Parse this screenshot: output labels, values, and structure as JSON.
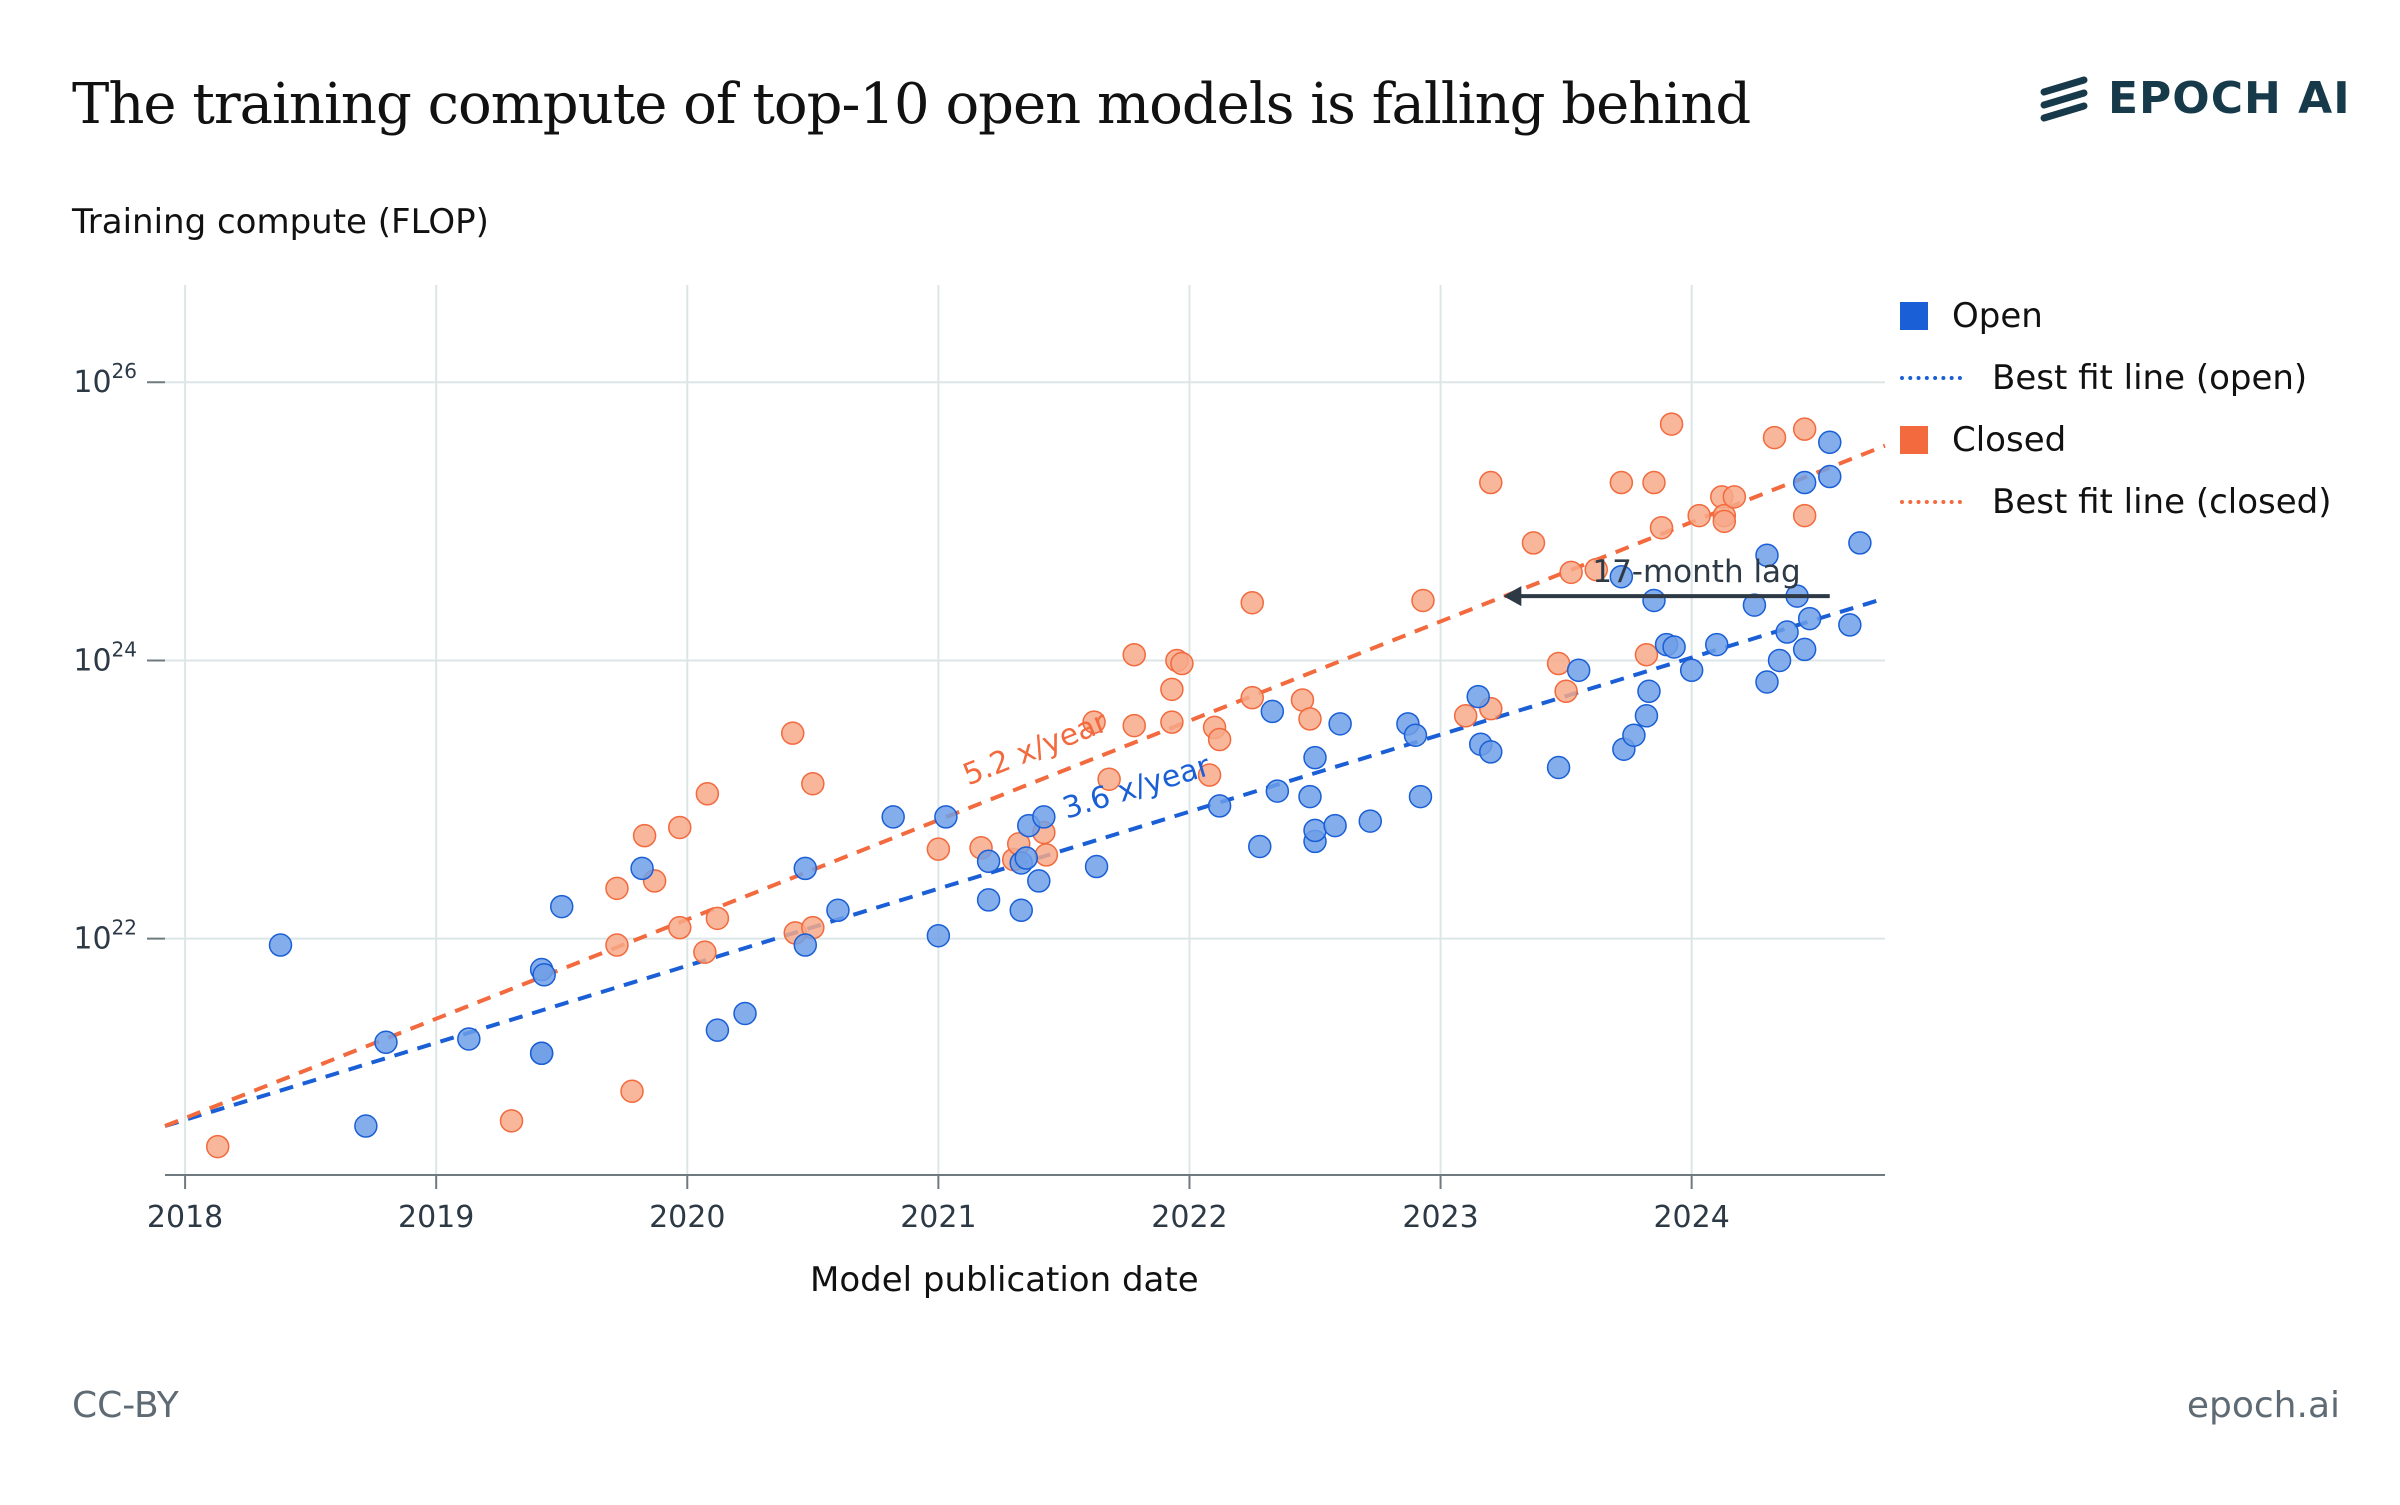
{
  "header": {
    "title": "The training compute of top-10 open models is falling behind",
    "logo_text": "EPOCH AI"
  },
  "footer": {
    "license": "CC-BY",
    "site": "epoch.ai"
  },
  "colors": {
    "open": "#1a5fd6",
    "open_fill": "#6f9fe8",
    "closed": "#f26a3d",
    "closed_fill": "#f7a98a",
    "grid": "#dde6e6",
    "axis": "#6f7a80",
    "annotation": "#2d3a45"
  },
  "legend": {
    "open": "Open",
    "open_fit": "Best fit line (open)",
    "closed": "Closed",
    "closed_fit": "Best fit line (closed)"
  },
  "chart_data": {
    "type": "scatter",
    "title": "The training compute of top-10 open models is falling behind",
    "xlabel": "Model publication date",
    "ylabel": "Training compute (FLOP)",
    "y_scale": "log",
    "xlim": [
      2017.92,
      2024.77
    ],
    "ylim": [
      2e+20,
      5e+26
    ],
    "x_ticks": [
      "2018",
      "2019",
      "2020",
      "2021",
      "2022",
      "2023",
      "2024"
    ],
    "y_ticks": [
      {
        "base": "10",
        "exp": "22",
        "value": 1e+22
      },
      {
        "base": "10",
        "exp": "24",
        "value": 1e+24
      },
      {
        "base": "10",
        "exp": "26",
        "value": 1e+26
      }
    ],
    "grid": true,
    "legend_position": "right",
    "series": [
      {
        "name": "Open",
        "kind": "points",
        "points": [
          [
            2018.38,
            9e+21
          ],
          [
            2018.72,
            4.5e+20
          ],
          [
            2018.8,
            1.8e+21
          ],
          [
            2019.13,
            1.9e+21
          ],
          [
            2019.42,
            1.5e+21
          ],
          [
            2019.42,
            1.5e+21
          ],
          [
            2019.42,
            6e+21
          ],
          [
            2019.43,
            5.5e+21
          ],
          [
            2019.5,
            1.7e+22
          ],
          [
            2019.82,
            3.2e+22
          ],
          [
            2020.12,
            2.2e+21
          ],
          [
            2020.23,
            2.9e+21
          ],
          [
            2020.47,
            3.2e+22
          ],
          [
            2020.47,
            9e+21
          ],
          [
            2020.6,
            1.6e+22
          ],
          [
            2020.82,
            7.5e+22
          ],
          [
            2021.0,
            1.05e+22
          ],
          [
            2021.03,
            7.5e+22
          ],
          [
            2021.2,
            1.9e+22
          ],
          [
            2021.2,
            3.6e+22
          ],
          [
            2021.33,
            1.6e+22
          ],
          [
            2021.33,
            3.5e+22
          ],
          [
            2021.35,
            3.8e+22
          ],
          [
            2021.36,
            6.5e+22
          ],
          [
            2021.4,
            2.6e+22
          ],
          [
            2021.42,
            7.5e+22
          ],
          [
            2021.63,
            3.3e+22
          ],
          [
            2022.12,
            9e+22
          ],
          [
            2022.28,
            4.6e+22
          ],
          [
            2022.33,
            4.3e+23
          ],
          [
            2022.35,
            1.15e+23
          ],
          [
            2022.48,
            1.05e+23
          ],
          [
            2022.5,
            2e+23
          ],
          [
            2022.5,
            5e+22
          ],
          [
            2022.5,
            6e+22
          ],
          [
            2022.58,
            6.5e+22
          ],
          [
            2022.6,
            3.5e+23
          ],
          [
            2022.72,
            7e+22
          ],
          [
            2022.87,
            3.5e+23
          ],
          [
            2022.9,
            2.9e+23
          ],
          [
            2022.92,
            1.05e+23
          ],
          [
            2023.15,
            5.5e+23
          ],
          [
            2023.16,
            2.5e+23
          ],
          [
            2023.2,
            2.2e+23
          ],
          [
            2023.47,
            1.7e+23
          ],
          [
            2023.55,
            8.5e+23
          ],
          [
            2023.72,
            4e+24
          ],
          [
            2023.73,
            2.3e+23
          ],
          [
            2023.77,
            2.9e+23
          ],
          [
            2023.82,
            4e+23
          ],
          [
            2023.83,
            6e+23
          ],
          [
            2023.85,
            2.7e+24
          ],
          [
            2023.9,
            1.3e+24
          ],
          [
            2023.93,
            1.25e+24
          ],
          [
            2024.0,
            8.5e+23
          ],
          [
            2024.1,
            1.3e+24
          ],
          [
            2024.25,
            2.5e+24
          ],
          [
            2024.3,
            5.7e+24
          ],
          [
            2024.3,
            7e+23
          ],
          [
            2024.35,
            1e+24
          ],
          [
            2024.38,
            1.6e+24
          ],
          [
            2024.42,
            2.9e+24
          ],
          [
            2024.45,
            1.2e+24
          ],
          [
            2024.45,
            1.9e+25
          ],
          [
            2024.47,
            2e+24
          ],
          [
            2024.55,
            3.7e+25
          ],
          [
            2024.55,
            2.1e+25
          ],
          [
            2024.63,
            1.8e+24
          ],
          [
            2024.67,
            7e+24
          ]
        ]
      },
      {
        "name": "Closed",
        "kind": "points",
        "points": [
          [
            2018.13,
            3.2e+20
          ],
          [
            2019.3,
            4.9e+20
          ],
          [
            2019.72,
            2.3e+22
          ],
          [
            2019.72,
            9e+21
          ],
          [
            2019.78,
            8e+20
          ],
          [
            2019.83,
            5.5e+22
          ],
          [
            2019.87,
            2.6e+22
          ],
          [
            2019.97,
            6.3e+22
          ],
          [
            2019.97,
            1.2e+22
          ],
          [
            2020.07,
            8e+21
          ],
          [
            2020.08,
            1.1e+23
          ],
          [
            2020.12,
            1.4e+22
          ],
          [
            2020.42,
            3e+23
          ],
          [
            2020.43,
            1.1e+22
          ],
          [
            2020.5,
            1.3e+23
          ],
          [
            2020.5,
            1.2e+22
          ],
          [
            2021.0,
            4.4e+22
          ],
          [
            2021.17,
            4.5e+22
          ],
          [
            2021.3,
            3.7e+22
          ],
          [
            2021.32,
            4.8e+22
          ],
          [
            2021.42,
            5.8e+22
          ],
          [
            2021.43,
            4e+22
          ],
          [
            2021.62,
            3.6e+23
          ],
          [
            2021.68,
            1.4e+23
          ],
          [
            2021.78,
            1.1e+24
          ],
          [
            2021.78,
            3.4e+23
          ],
          [
            2021.93,
            3.6e+23
          ],
          [
            2021.93,
            6.2e+23
          ],
          [
            2021.95,
            1e+24
          ],
          [
            2021.97,
            9.5e+23
          ],
          [
            2022.08,
            1.5e+23
          ],
          [
            2022.1,
            3.3e+23
          ],
          [
            2022.12,
            2.7e+23
          ],
          [
            2022.25,
            5.4e+23
          ],
          [
            2022.25,
            2.6e+24
          ],
          [
            2022.45,
            5.2e+23
          ],
          [
            2022.48,
            3.8e+23
          ],
          [
            2022.93,
            2.7e+24
          ],
          [
            2023.1,
            4e+23
          ],
          [
            2023.2,
            1.9e+25
          ],
          [
            2023.2,
            4.5e+23
          ],
          [
            2023.37,
            7e+24
          ],
          [
            2023.47,
            9.5e+23
          ],
          [
            2023.5,
            6e+23
          ],
          [
            2023.52,
            4.3e+24
          ],
          [
            2023.62,
            4.5e+24
          ],
          [
            2023.72,
            1.9e+25
          ],
          [
            2023.82,
            1.1e+24
          ],
          [
            2023.85,
            1.9e+25
          ],
          [
            2023.88,
            9e+24
          ],
          [
            2023.92,
            5e+25
          ],
          [
            2024.03,
            1.1e+25
          ],
          [
            2024.12,
            1.5e+25
          ],
          [
            2024.13,
            1.1e+25
          ],
          [
            2024.13,
            1e+25
          ],
          [
            2024.17,
            1.5e+25
          ],
          [
            2024.33,
            4e+25
          ],
          [
            2024.45,
            1.1e+25
          ],
          [
            2024.45,
            4.6e+25
          ]
        ]
      },
      {
        "name": "Best fit line (open)",
        "kind": "line",
        "points": [
          [
            2017.92,
            4.5e+20
          ],
          [
            2024.77,
            2.8e+24
          ]
        ]
      },
      {
        "name": "Best fit line (closed)",
        "kind": "line",
        "points": [
          [
            2017.92,
            4.5e+20
          ],
          [
            2024.77,
            3.5e+25
          ]
        ]
      }
    ],
    "annotations": [
      {
        "text": "5.2 x/year",
        "series": "closed",
        "at": [
          2021.4,
          2e+23
        ]
      },
      {
        "text": "3.6 x/year",
        "series": "open",
        "at": [
          2021.8,
          1.05e+23
        ]
      },
      {
        "text": "17-month lag",
        "from": [
          2024.55,
          2.9e+24
        ],
        "to": [
          2023.25,
          2.9e+24
        ]
      }
    ]
  }
}
